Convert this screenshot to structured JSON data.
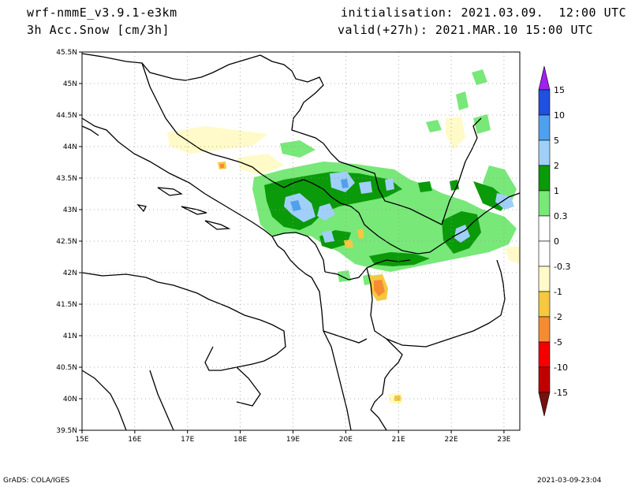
{
  "header": {
    "model": "wrf-nmmE_v3.9.1-e3km",
    "field": "3h Acc.Snow [cm/3h]",
    "init": "initialisation: 2021.03.09.  12:00 UTC",
    "valid": "valid(+27h): 2021.MAR.10 15:00 UTC"
  },
  "footer": {
    "left": "GrADS: COLA/IGES",
    "right": "2021-03-09-23:04"
  },
  "map": {
    "lon_range": [
      15,
      23.3
    ],
    "lat_range": [
      39.5,
      45.5
    ],
    "lon_ticks": [
      "15E",
      "16E",
      "17E",
      "18E",
      "19E",
      "20E",
      "21E",
      "22E",
      "23E"
    ],
    "lat_ticks": [
      "39.5N",
      "40N",
      "40.5N",
      "41N",
      "41.5N",
      "42N",
      "42.5N",
      "43N",
      "43.5N",
      "44N",
      "44.5N",
      "45N",
      "45.5N"
    ]
  },
  "legend": {
    "labels": [
      "15",
      "10",
      "5",
      "2",
      "1",
      "0.3",
      "0",
      "-0.3",
      "-1",
      "-2",
      "-5",
      "-10",
      "-15"
    ],
    "colors": [
      "#a020f0",
      "#2050e0",
      "#50a0f0",
      "#a0d0f8",
      "#0a9a0a",
      "#78e878",
      "#ffffff",
      "#ffffff",
      "#fffac8",
      "#f5c840",
      "#f58c32",
      "#f50000",
      "#c00000",
      "#a00000",
      "#781010"
    ]
  },
  "colors": {
    "snow_light": "#78e878",
    "snow_mid": "#0a9a0a",
    "snow_blue": "#a0d0f8",
    "snow_blue2": "#50a0f0",
    "neg_light": "#fffac8",
    "neg_yellow": "#f5c840",
    "neg_orange": "#f58c32"
  }
}
